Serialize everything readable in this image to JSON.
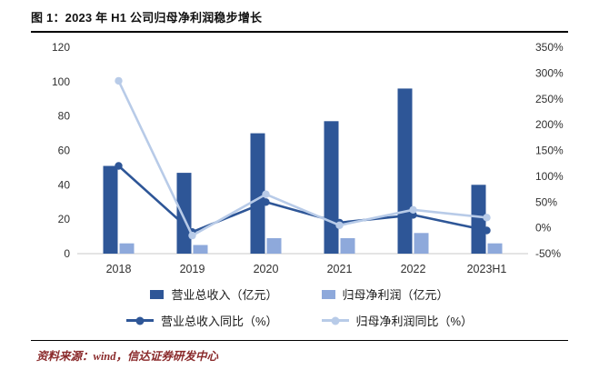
{
  "figure": {
    "title": "图 1：2023 年 H1 公司归母净利润稳步增长",
    "source": "资料来源：wind，信达证券研发中心"
  },
  "colors": {
    "accent_red": "#8A2A2B",
    "bar_revenue": "#2E5697",
    "bar_profit": "#8EA9DB",
    "line_revenue": "#2E5697",
    "line_profit": "#B8CBE8"
  },
  "chart_data": {
    "type": "bar",
    "subtype": "combo-bar-line-dual-axis",
    "title": "2023 年 H1 公司归母净利润稳步增长",
    "categories": [
      "2018",
      "2019",
      "2020",
      "2021",
      "2022",
      "2023H1"
    ],
    "series": [
      {
        "name": "营业总收入（亿元）",
        "type": "bar",
        "axis": "left",
        "values": [
          51,
          47,
          70,
          77,
          96,
          40
        ]
      },
      {
        "name": "归母净利润（亿元）",
        "type": "bar",
        "axis": "left",
        "values": [
          6,
          5,
          9,
          9,
          12,
          6
        ]
      },
      {
        "name": "营业总收入同比（%）",
        "type": "line",
        "axis": "right",
        "values": [
          120,
          -8,
          50,
          10,
          25,
          -5
        ]
      },
      {
        "name": "归母净利润同比（%）",
        "type": "line",
        "axis": "right",
        "values": [
          285,
          -15,
          65,
          5,
          35,
          20
        ]
      }
    ],
    "left_axis": {
      "min": 0,
      "max": 120,
      "step": 20,
      "ticks": [
        "0",
        "20",
        "40",
        "60",
        "80",
        "100",
        "120"
      ]
    },
    "right_axis": {
      "min": -50,
      "max": 350,
      "step": 50,
      "ticks": [
        "-50%",
        "0%",
        "50%",
        "100%",
        "150%",
        "200%",
        "250%",
        "300%",
        "350%"
      ]
    },
    "grid": false,
    "legend_position": "bottom"
  }
}
